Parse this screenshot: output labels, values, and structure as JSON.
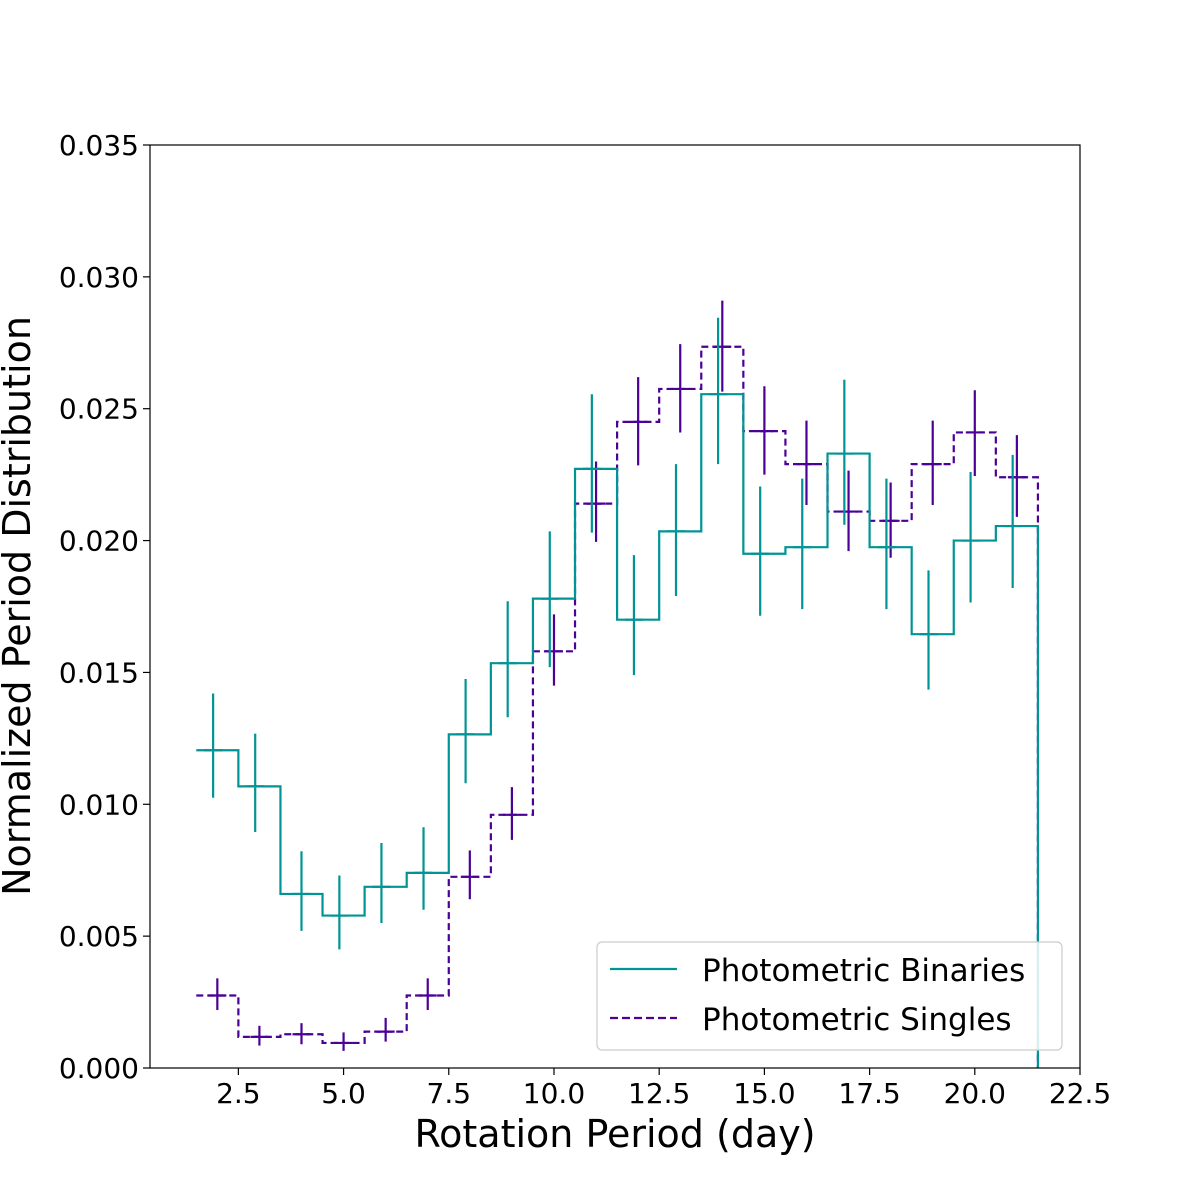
{
  "chart_data": {
    "type": "histogram-step",
    "title": "",
    "xlabel": "Rotation Period (day)",
    "ylabel": "Normalized Period Distribution",
    "xlim": [
      0.4,
      22.5
    ],
    "ylim": [
      0.0,
      0.035
    ],
    "xticks": [
      2.5,
      5.0,
      7.5,
      10.0,
      12.5,
      15.0,
      17.5,
      20.0,
      22.5
    ],
    "xtick_labels": [
      "2.5",
      "5.0",
      "7.5",
      "10.0",
      "12.5",
      "15.0",
      "17.5",
      "20.0",
      "22.5"
    ],
    "yticks": [
      0.0,
      0.005,
      0.01,
      0.015,
      0.02,
      0.025,
      0.03,
      0.035
    ],
    "ytick_labels": [
      "0.000",
      "0.005",
      "0.010",
      "0.015",
      "0.020",
      "0.025",
      "0.030",
      "0.035"
    ],
    "bin_edges": [
      1.5,
      2.5,
      3.5,
      4.5,
      5.5,
      6.5,
      7.5,
      8.5,
      9.5,
      10.5,
      11.5,
      12.5,
      13.5,
      14.5,
      15.5,
      16.5,
      17.5,
      18.5,
      19.5,
      20.5,
      21.5
    ],
    "legend_position": "lower-right",
    "series": [
      {
        "name": "Photometric Binaries",
        "style": "solid",
        "color": "#009494",
        "values": [
          0.01205,
          0.01068,
          0.0066,
          0.00578,
          0.00687,
          0.0074,
          0.01265,
          0.01535,
          0.0178,
          0.02272,
          0.017,
          0.02035,
          0.02555,
          0.0195,
          0.01975,
          0.0233,
          0.01975,
          0.01645,
          0.02,
          0.02055
        ],
        "err_x": [
          1.9,
          2.9,
          4.0,
          4.9,
          5.9,
          6.9,
          7.9,
          8.9,
          9.9,
          10.9,
          11.9,
          12.9,
          13.9,
          14.9,
          15.9,
          16.9,
          17.9,
          18.9,
          19.9,
          20.9
        ],
        "err_low": [
          0.01025,
          0.00895,
          0.0052,
          0.0045,
          0.0055,
          0.006,
          0.0108,
          0.0133,
          0.0152,
          0.0203,
          0.0149,
          0.0179,
          0.0229,
          0.01715,
          0.0174,
          0.0206,
          0.0174,
          0.01435,
          0.01765,
          0.0182
        ],
        "err_high": [
          0.0142,
          0.01268,
          0.00822,
          0.0073,
          0.00853,
          0.00913,
          0.01475,
          0.0177,
          0.02035,
          0.02555,
          0.01945,
          0.0229,
          0.02845,
          0.02205,
          0.02235,
          0.0261,
          0.02235,
          0.01887,
          0.0226,
          0.02325
        ]
      },
      {
        "name": "Photometric Singles",
        "style": "dashed",
        "color": "#4b0096",
        "values": [
          0.00275,
          0.00118,
          0.00128,
          0.00095,
          0.00138,
          0.00275,
          0.00725,
          0.0096,
          0.0158,
          0.0214,
          0.0245,
          0.02575,
          0.02735,
          0.02415,
          0.0229,
          0.0211,
          0.02075,
          0.0229,
          0.0241,
          0.0224
        ],
        "err_x": [
          2.0,
          3.0,
          4.0,
          5.0,
          6.0,
          7.0,
          8.0,
          9.0,
          10.0,
          11.0,
          12.0,
          13.0,
          14.0,
          15.0,
          16.0,
          17.0,
          18.0,
          19.0,
          20.0,
          21.0
        ],
        "err_low": [
          0.0022,
          0.00085,
          0.0009,
          0.00065,
          0.001,
          0.0022,
          0.0064,
          0.00865,
          0.0145,
          0.01995,
          0.02285,
          0.0241,
          0.02565,
          0.0225,
          0.02135,
          0.0196,
          0.01935,
          0.02135,
          0.02245,
          0.0209
        ],
        "err_high": [
          0.0034,
          0.0016,
          0.0017,
          0.00135,
          0.0019,
          0.0034,
          0.00825,
          0.01065,
          0.0172,
          0.023,
          0.0262,
          0.02745,
          0.0291,
          0.02585,
          0.02455,
          0.02265,
          0.0222,
          0.02455,
          0.0257,
          0.024
        ]
      }
    ]
  }
}
